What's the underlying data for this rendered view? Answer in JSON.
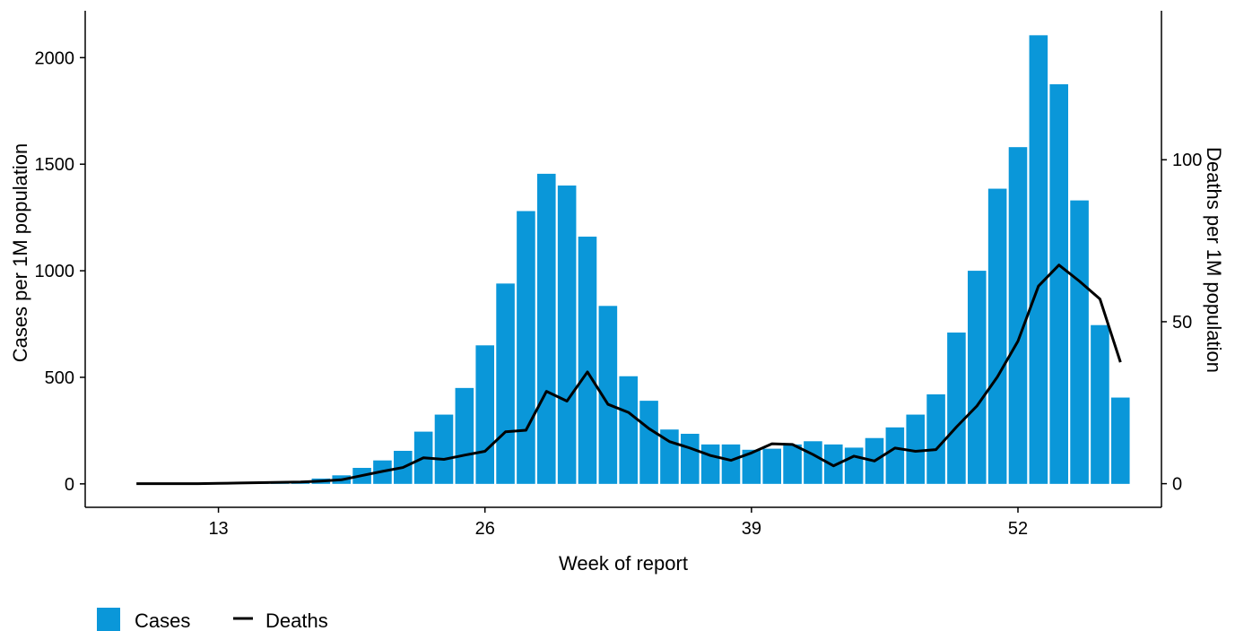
{
  "chart_data": {
    "type": "bar",
    "xlabel": "Week of report",
    "ylabel": "Cases per 1M population",
    "y2label": "Deaths per 1M population",
    "xlim": [
      6.5,
      59
    ],
    "ylim": [
      -110,
      2220
    ],
    "y2lim": [
      -7.3,
      146
    ],
    "xticks": [
      13,
      26,
      39,
      52
    ],
    "yticks": [
      0,
      500,
      1000,
      1500,
      2000
    ],
    "y2ticks": [
      0,
      50,
      100
    ],
    "grid": false,
    "legend_position": "bottom-left",
    "colors": {
      "cases": "#0a97d9",
      "deaths": "#000000"
    },
    "series": [
      {
        "name": "Cases",
        "type": "bar",
        "axis": "left",
        "x": [
          9,
          10,
          11,
          12,
          13,
          14,
          15,
          16,
          17,
          18,
          19,
          20,
          21,
          22,
          23,
          24,
          25,
          26,
          27,
          28,
          29,
          30,
          31,
          32,
          33,
          34,
          35,
          36,
          37,
          38,
          39,
          40,
          41,
          42,
          43,
          44,
          45,
          46,
          47,
          48,
          49,
          50,
          51,
          52,
          53,
          54,
          55,
          56,
          57
        ],
        "values": [
          0,
          1,
          2,
          2,
          3,
          2,
          2,
          4,
          10,
          25,
          40,
          75,
          110,
          155,
          245,
          325,
          450,
          650,
          940,
          1280,
          1455,
          1400,
          1160,
          835,
          505,
          390,
          255,
          235,
          185,
          185,
          160,
          165,
          185,
          200,
          185,
          170,
          215,
          265,
          325,
          420,
          710,
          1000,
          1385,
          1580,
          2105,
          1875,
          1330,
          745,
          405
        ]
      },
      {
        "name": "Deaths",
        "type": "line",
        "axis": "right",
        "x": [
          9,
          10,
          11,
          12,
          13,
          14,
          15,
          16,
          17,
          18,
          19,
          20,
          21,
          22,
          23,
          24,
          25,
          26,
          27,
          28,
          29,
          30,
          31,
          32,
          33,
          34,
          35,
          36,
          37,
          38,
          39,
          40,
          41,
          42,
          43,
          44,
          45,
          46,
          47,
          48,
          49,
          50,
          51,
          52,
          53,
          54,
          55,
          56,
          57
        ],
        "values": [
          0,
          0,
          0,
          0,
          0.1,
          0.2,
          0.3,
          0.4,
          0.5,
          0.8,
          1.2,
          2.5,
          3.8,
          5,
          8,
          7.5,
          8.8,
          10,
          16,
          16.5,
          28.5,
          25.5,
          34.5,
          24.5,
          22,
          17,
          13,
          11,
          8.7,
          7.2,
          9.5,
          12.3,
          12.1,
          9,
          5.5,
          8.5,
          7,
          11,
          10,
          10.5,
          17.5,
          24,
          33,
          44,
          61,
          67.5,
          62.5,
          57,
          37.5
        ]
      }
    ]
  }
}
